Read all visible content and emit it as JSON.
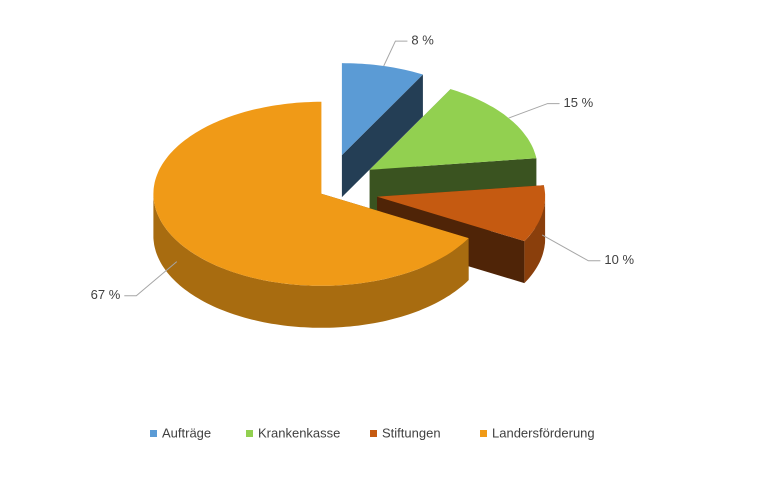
{
  "chart_data": {
    "type": "pie3d",
    "categories": [
      "Aufträge",
      "Krankenkasse",
      "Stiftungen",
      "Landersförderung"
    ],
    "values": [
      8,
      15,
      10,
      67
    ],
    "value_labels": [
      "8 %",
      "15 %",
      "10 %",
      "67 %"
    ],
    "colors": [
      "#5b9bd5",
      "#92d050",
      "#c55a11",
      "#f09a17"
    ],
    "legend": "bottom"
  }
}
